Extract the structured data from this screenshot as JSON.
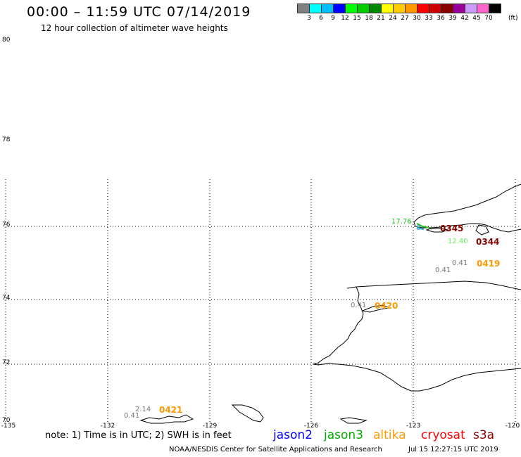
{
  "header": {
    "title": "00:00 – 11:59 UTC 07/14/2019",
    "subtitle": "12 hour collection of altimeter wave heights"
  },
  "color_scale": {
    "colors": [
      "#808080",
      "#00ffff",
      "#00bfff",
      "#0000ff",
      "#00ff00",
      "#00cc00",
      "#008800",
      "#ffff00",
      "#ffcc00",
      "#ff9900",
      "#ff0000",
      "#cc0000",
      "#880000",
      "#990099",
      "#cc99ff",
      "#ff66cc",
      "#000000"
    ],
    "labels": [
      "3",
      "6",
      "9",
      "12",
      "15",
      "18",
      "21",
      "24",
      "27",
      "30",
      "33",
      "36",
      "39",
      "42",
      "45",
      "70"
    ],
    "unit": "(ft)"
  },
  "axes": {
    "lat_labels": [
      "80",
      "78",
      "76",
      "74",
      "72",
      "70"
    ],
    "lon_labels": [
      "-135",
      "-132",
      "-129",
      "-126",
      "-123",
      "-120"
    ]
  },
  "annotations": [
    {
      "text": "17.76",
      "color": "#22bb22"
    },
    {
      "text": "8.",
      "color": "#33aacc"
    },
    {
      "text": "12.40",
      "color": "#66ee66"
    },
    {
      "text": "0.41",
      "color": "#777777"
    },
    {
      "text": "0.41",
      "color": "#777777"
    },
    {
      "text": "0.41",
      "color": "#777777"
    },
    {
      "text": "2.14",
      "color": "#777777"
    },
    {
      "text": "0.41",
      "color": "#777777"
    }
  ],
  "passes": [
    {
      "text": "0345",
      "color": "#880000"
    },
    {
      "text": "0344",
      "color": "#880000"
    },
    {
      "text": "0419",
      "color": "#ff9900"
    },
    {
      "text": "0420",
      "color": "#ff9900"
    },
    {
      "text": "0421",
      "color": "#ff9900"
    }
  ],
  "footer": {
    "note": "note: 1) Time is in UTC; 2) SWH is in feet",
    "legend": [
      {
        "name": "jason2",
        "color": "#0000ff"
      },
      {
        "name": "jason3",
        "color": "#00aa00"
      },
      {
        "name": "altika",
        "color": "#ff9900"
      },
      {
        "name": "cryosat",
        "color": "#ff0000"
      },
      {
        "name": "s3a",
        "color": "#880000"
      }
    ],
    "credit_org": "NOAA/NESDIS Center for Satellite Applications and Research",
    "credit_time": "Jul 15 12:27:15 UTC 2019"
  }
}
